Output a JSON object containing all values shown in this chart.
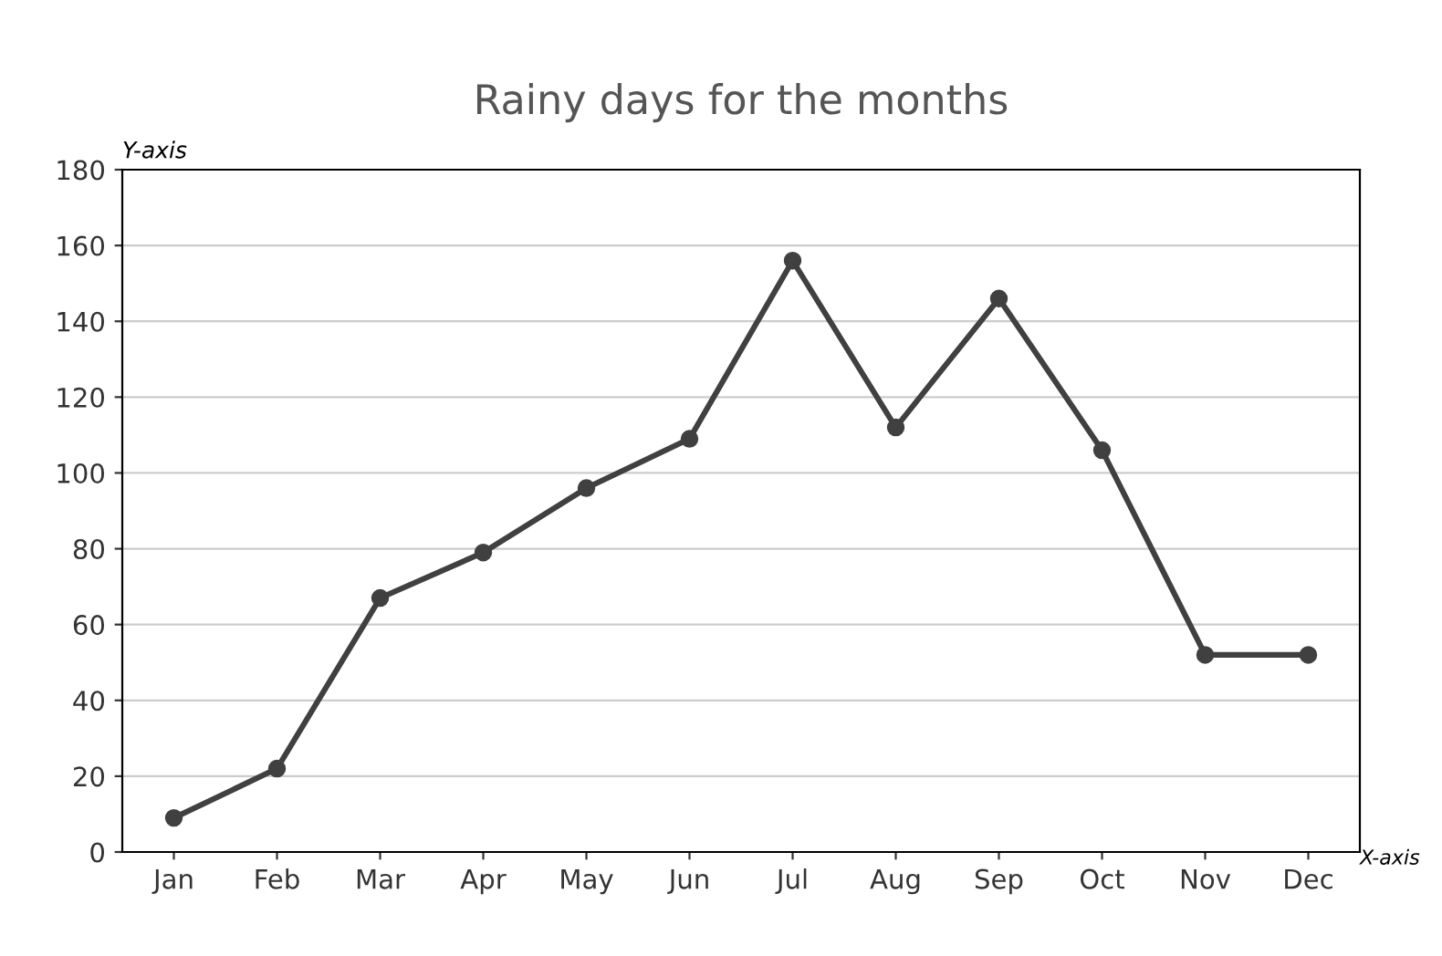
{
  "chart_data": {
    "type": "line",
    "title": "Rainy days for the months",
    "ylabel": "Y-axis",
    "xlabel": "X-axis",
    "categories": [
      "Jan",
      "Feb",
      "Mar",
      "Apr",
      "May",
      "Jun",
      "Jul",
      "Aug",
      "Sep",
      "Oct",
      "Nov",
      "Dec"
    ],
    "series": [
      {
        "color": "#404040",
        "values": [
          9,
          22,
          67,
          79,
          96,
          109,
          156,
          112,
          146,
          106,
          52,
          52
        ]
      }
    ],
    "ylim": [
      0,
      180
    ],
    "yticks": [
      0,
      20,
      40,
      60,
      80,
      100,
      120,
      140,
      160,
      180
    ],
    "grid": "y",
    "marker": "circle",
    "line_style": "solid",
    "legend": false
  }
}
